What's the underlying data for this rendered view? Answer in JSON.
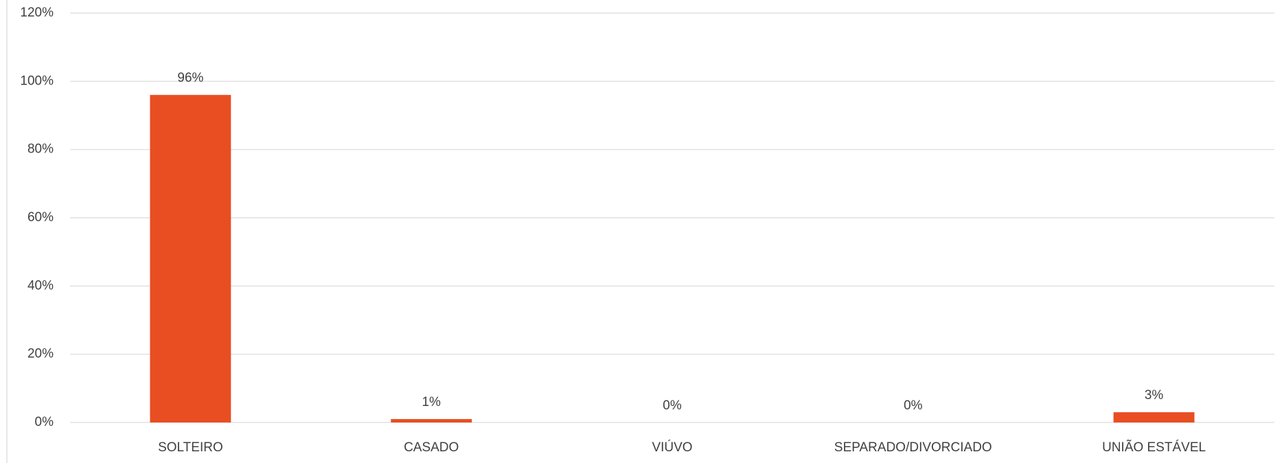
{
  "chart_data": {
    "type": "bar",
    "categories": [
      "SOLTEIRO",
      "CASADO",
      "VIÚVO",
      "SEPARADO/DIVORCIADO",
      "UNIÃO ESTÁVEL"
    ],
    "values": [
      96,
      1,
      0,
      0,
      3
    ],
    "value_labels": [
      "96%",
      "1%",
      "0%",
      "0%",
      "3%"
    ],
    "color": "#e84e22",
    "ylim": [
      0,
      120
    ],
    "yticks": [
      {
        "value": 0,
        "label": "0%"
      },
      {
        "value": 20,
        "label": "20%"
      },
      {
        "value": 40,
        "label": "40%"
      },
      {
        "value": 60,
        "label": "60%"
      },
      {
        "value": 80,
        "label": "80%"
      },
      {
        "value": 100,
        "label": "100%"
      },
      {
        "value": 120,
        "label": "120%"
      }
    ],
    "grid": true
  }
}
